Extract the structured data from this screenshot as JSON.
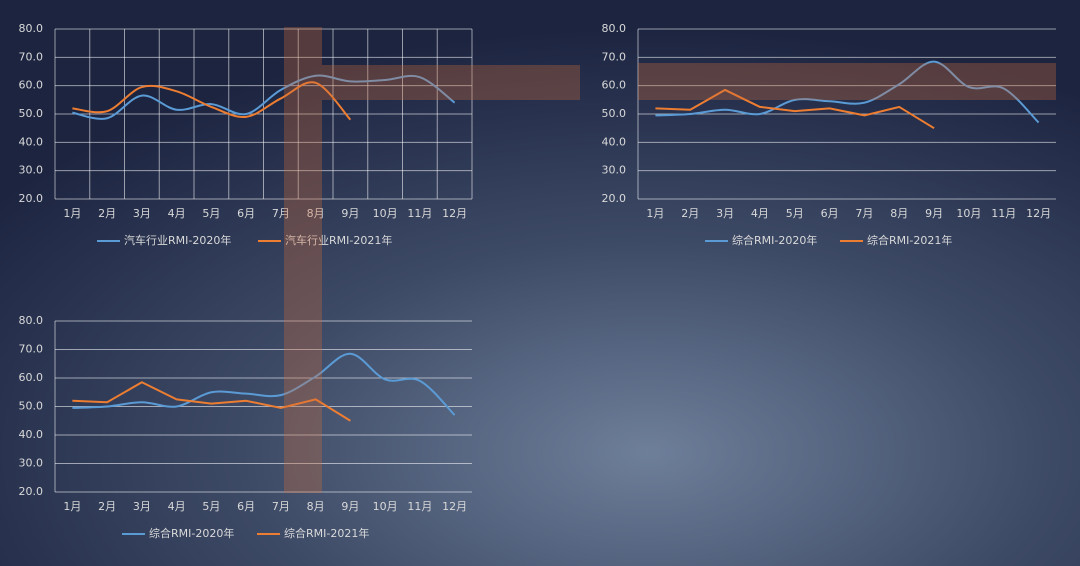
{
  "chart_data": [
    {
      "type": "line",
      "categories": [
        "1月",
        "2月",
        "3月",
        "4月",
        "5月",
        "6月",
        "7月",
        "8月",
        "9月",
        "10月",
        "11月",
        "12月"
      ],
      "ylim": [
        20,
        80
      ],
      "yticks": [
        {
          "value": 20,
          "label": "20.0"
        },
        {
          "value": 30,
          "label": "30.0"
        },
        {
          "value": 40,
          "label": "40.0"
        },
        {
          "value": 50,
          "label": "50.0"
        },
        {
          "value": 60,
          "label": "60.0"
        },
        {
          "value": 70,
          "label": "70.0"
        },
        {
          "value": 80,
          "label": "80.0"
        }
      ],
      "grid": true,
      "xgrid": true,
      "legend": "bottom",
      "series": [
        {
          "name": "汽车行业RMI-2020年",
          "color": "#5b9bd5",
          "smooth": true,
          "values": [
            50.5,
            48.5,
            56.5,
            51.5,
            53.5,
            50,
            58.5,
            63.5,
            61.5,
            62,
            63,
            54
          ]
        },
        {
          "name": "汽车行业RMI-2021年",
          "color": "#ed7d31",
          "smooth": true,
          "values": [
            52,
            51,
            59.5,
            58,
            52.5,
            49,
            55.5,
            61,
            48,
            null,
            null,
            null
          ]
        }
      ]
    },
    {
      "type": "line",
      "categories": [
        "1月",
        "2月",
        "3月",
        "4月",
        "5月",
        "6月",
        "7月",
        "8月",
        "9月",
        "10月",
        "11月",
        "12月"
      ],
      "ylim": [
        20,
        80
      ],
      "yticks": [
        {
          "value": 20,
          "label": "20.0"
        },
        {
          "value": 30,
          "label": "30.0"
        },
        {
          "value": 40,
          "label": "40.0"
        },
        {
          "value": 50,
          "label": "50.0"
        },
        {
          "value": 60,
          "label": "60.0"
        },
        {
          "value": 70,
          "label": "70.0"
        },
        {
          "value": 80,
          "label": "80.0"
        }
      ],
      "grid": true,
      "xgrid": false,
      "legend": "bottom",
      "series": [
        {
          "name": "综合RMI-2020年",
          "color": "#5b9bd5",
          "smooth": true,
          "values": [
            49.5,
            50,
            51.5,
            50,
            55,
            54.5,
            54,
            60.5,
            68.5,
            59.5,
            59,
            47
          ]
        },
        {
          "name": "综合RMI-2021年",
          "color": "#ed7d31",
          "smooth": false,
          "values": [
            52,
            51.5,
            58.5,
            52.5,
            51,
            52,
            49.5,
            52.5,
            45,
            null,
            null,
            null
          ]
        }
      ]
    },
    {
      "type": "line",
      "categories": [
        "1月",
        "2月",
        "3月",
        "4月",
        "5月",
        "6月",
        "7月",
        "8月",
        "9月",
        "10月",
        "11月",
        "12月"
      ],
      "ylim": [
        20,
        80
      ],
      "yticks": [
        {
          "value": 20,
          "label": "20.0"
        },
        {
          "value": 30,
          "label": "30.0"
        },
        {
          "value": 40,
          "label": "40.0"
        },
        {
          "value": 50,
          "label": "50.0"
        },
        {
          "value": 60,
          "label": "60.0"
        },
        {
          "value": 70,
          "label": "70.0"
        },
        {
          "value": 80,
          "label": "80.0"
        }
      ],
      "grid": true,
      "xgrid": false,
      "legend": "bottom",
      "series": [
        {
          "name": "综合RMI-2020年",
          "color": "#5b9bd5",
          "smooth": true,
          "values": [
            49.5,
            50,
            51.5,
            50,
            55,
            54.5,
            54,
            60.5,
            68.5,
            59.5,
            59,
            47
          ]
        },
        {
          "name": "综合RMI-2021年",
          "color": "#ed7d31",
          "smooth": false,
          "values": [
            52,
            51.5,
            58.5,
            52.5,
            51,
            52,
            49.5,
            52.5,
            45,
            null,
            null,
            null
          ]
        }
      ]
    }
  ]
}
